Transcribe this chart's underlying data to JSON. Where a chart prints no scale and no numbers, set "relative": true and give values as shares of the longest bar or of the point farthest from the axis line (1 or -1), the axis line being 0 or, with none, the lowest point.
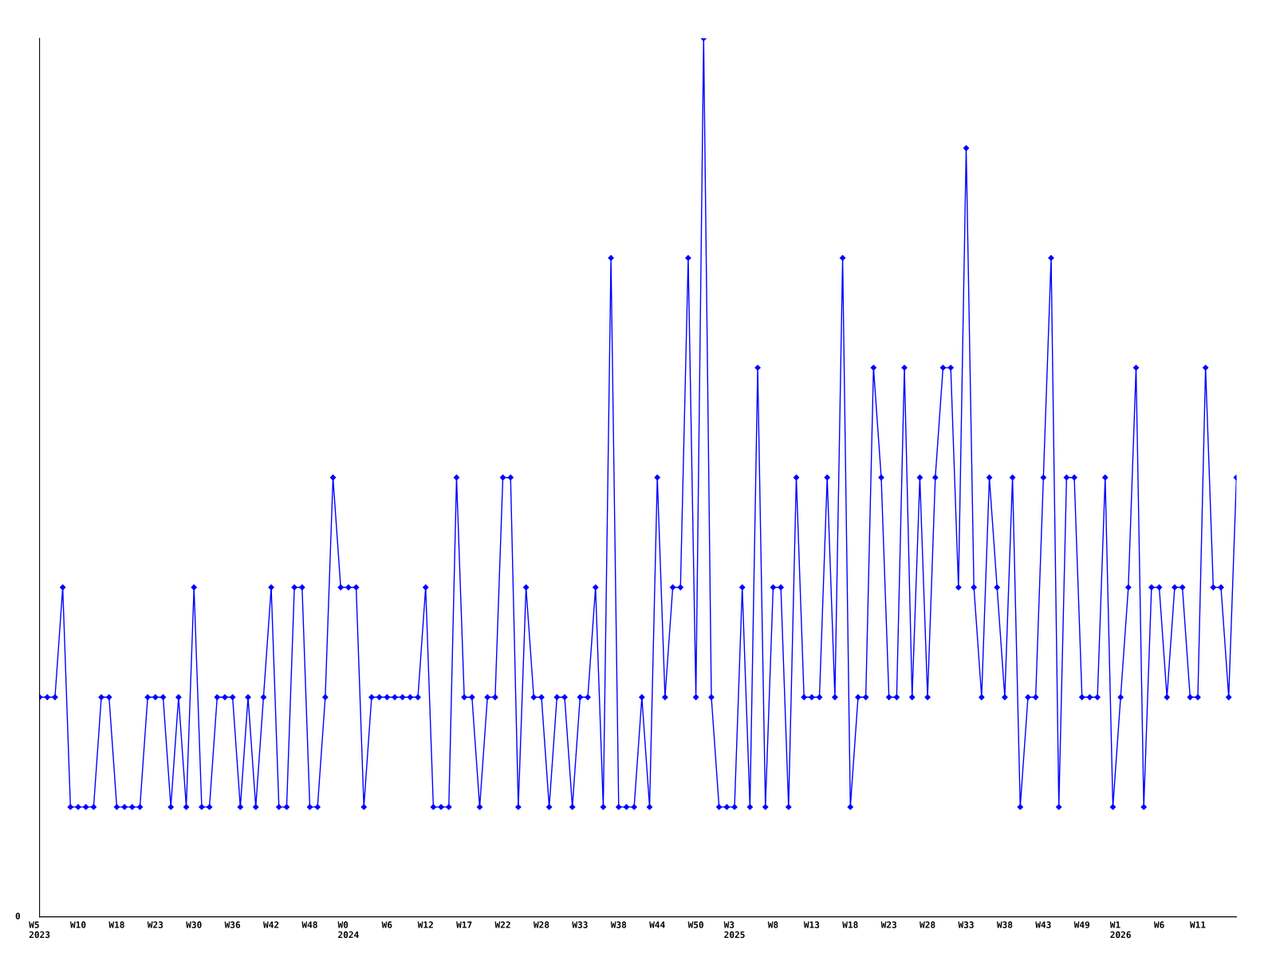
{
  "chart_data": {
    "type": "line",
    "relative": true,
    "color": "#0000ff",
    "marker": "diamond",
    "line_style": "solid",
    "grid": false,
    "legend": false,
    "annotations": [
      "0"
    ],
    "categories": [
      "W5\n2023",
      null,
      null,
      null,
      null,
      "W10",
      null,
      null,
      null,
      null,
      "W18",
      null,
      null,
      null,
      null,
      "W23",
      null,
      null,
      null,
      null,
      "W30",
      null,
      null,
      null,
      null,
      "W36",
      null,
      null,
      null,
      null,
      "W42",
      null,
      null,
      null,
      null,
      "W48",
      null,
      null,
      null,
      null,
      "W0\n2024",
      null,
      null,
      null,
      null,
      "W6",
      null,
      null,
      null,
      null,
      "W12",
      null,
      null,
      null,
      null,
      "W17",
      null,
      null,
      null,
      null,
      "W22",
      null,
      null,
      null,
      null,
      "W28",
      null,
      null,
      null,
      null,
      "W33",
      null,
      null,
      null,
      null,
      "W38",
      null,
      null,
      null,
      null,
      "W44",
      null,
      null,
      null,
      null,
      "W50",
      null,
      null,
      null,
      null,
      "W3\n2025",
      null,
      null,
      null,
      null,
      "W8",
      null,
      null,
      null,
      null,
      "W13",
      null,
      null,
      null,
      null,
      "W18",
      null,
      null,
      null,
      null,
      "W23",
      null,
      null,
      null,
      null,
      "W28",
      null,
      null,
      null,
      null,
      "W33",
      null,
      null,
      null,
      null,
      "W38",
      null,
      null,
      null,
      null,
      "W43",
      null,
      null,
      null,
      null,
      "W49",
      null,
      null,
      null,
      null,
      "W1\n2026",
      null,
      null,
      null,
      null,
      "W6",
      null,
      null,
      null,
      null,
      "W11",
      null,
      null,
      null,
      null,
      null
    ],
    "values": [
      0.25,
      0.25,
      0.25,
      0.375,
      0.125,
      0.125,
      0.125,
      0.125,
      0.25,
      0.25,
      0.125,
      0.125,
      0.125,
      0.125,
      0.25,
      0.25,
      0.25,
      0.125,
      0.25,
      0.125,
      0.375,
      0.125,
      0.125,
      0.25,
      0.25,
      0.25,
      0.125,
      0.25,
      0.125,
      0.25,
      0.375,
      0.125,
      0.125,
      0.375,
      0.375,
      0.125,
      0.125,
      0.25,
      0.5,
      0.375,
      0.375,
      0.375,
      0.125,
      0.25,
      0.25,
      0.25,
      0.25,
      0.25,
      0.25,
      0.25,
      0.375,
      0.125,
      0.125,
      0.125,
      0.5,
      0.25,
      0.25,
      0.125,
      0.25,
      0.25,
      0.5,
      0.5,
      0.125,
      0.375,
      0.25,
      0.25,
      0.125,
      0.25,
      0.25,
      0.125,
      0.25,
      0.25,
      0.375,
      0.125,
      0.75,
      0.125,
      0.125,
      0.125,
      0.25,
      0.125,
      0.5,
      0.25,
      0.375,
      0.375,
      0.75,
      0.25,
      1,
      0.25,
      0.125,
      0.125,
      0.125,
      0.375,
      0.125,
      0.625,
      0.125,
      0.375,
      0.375,
      0.125,
      0.5,
      0.25,
      0.25,
      0.25,
      0.5,
      0.25,
      0.75,
      0.125,
      0.25,
      0.25,
      0.625,
      0.5,
      0.25,
      0.25,
      0.625,
      0.25,
      0.5,
      0.25,
      0.5,
      0.625,
      0.625,
      0.375,
      0.875,
      0.375,
      0.25,
      0.5,
      0.375,
      0.25,
      0.5,
      0.125,
      0.25,
      0.25,
      0.5,
      0.75,
      0.125,
      0.5,
      0.5,
      0.25,
      0.25,
      0.25,
      0.5,
      0.125,
      0.25,
      0.375,
      0.625,
      0.125,
      0.375,
      0.375,
      0.25,
      0.375,
      0.375,
      0.25,
      0.25,
      0.625,
      0.375,
      0.375,
      0.25,
      0.5
    ]
  }
}
